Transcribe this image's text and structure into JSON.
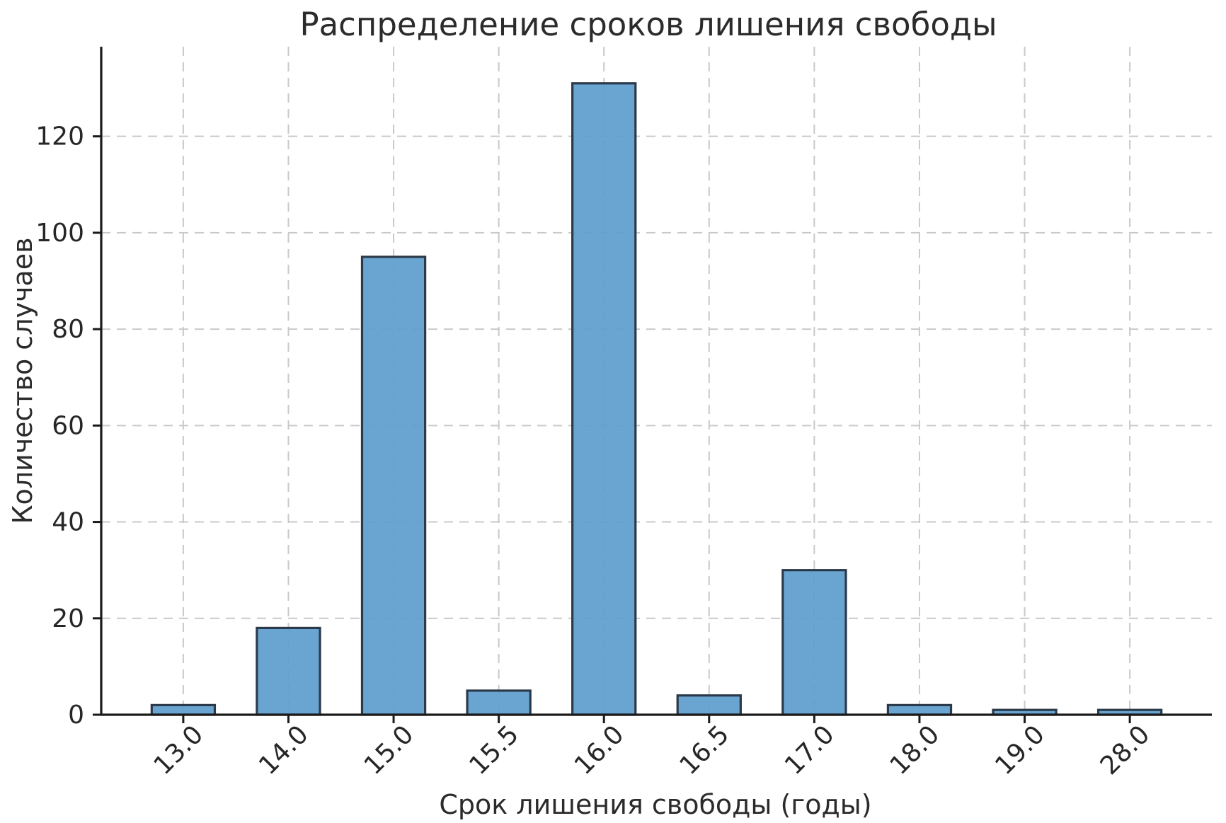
{
  "chart_data": {
    "type": "bar",
    "title": "Распределение сроков лишения свободы",
    "xlabel": "Срок лишения свободы (годы)",
    "ylabel": "Количество случаев",
    "categories": [
      "13.0",
      "14.0",
      "15.0",
      "15.5",
      "16.0",
      "16.5",
      "17.0",
      "18.0",
      "19.0",
      "28.0"
    ],
    "values": [
      2,
      18,
      95,
      5,
      131,
      4,
      30,
      2,
      1,
      1
    ],
    "yticks": [
      0,
      20,
      40,
      60,
      80,
      100,
      120
    ],
    "ylim": [
      0,
      138.6
    ],
    "xtick_rotation_deg": 45,
    "legend": "none",
    "grid": "dashed-both-axes",
    "colors": {
      "bar_fill": "#5f9ecd",
      "bar_edge": "#2b3a4a",
      "grid_line": "#c9c9c9",
      "axis_line": "#1a1a1a",
      "text": "#262626"
    }
  }
}
